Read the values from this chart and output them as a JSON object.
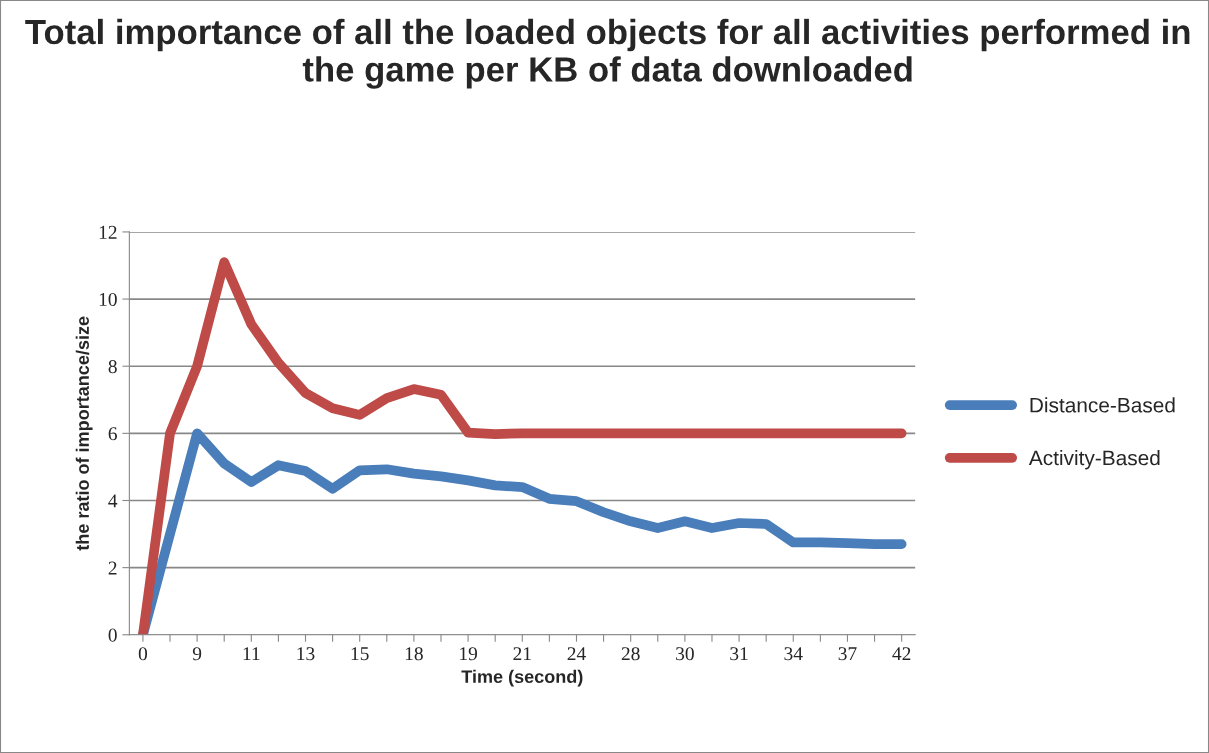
{
  "chart_data": {
    "type": "line",
    "title": "Total importance of all the loaded objects for all activities performed in the game per KB of data downloaded",
    "xlabel": "Time (second)",
    "ylabel": "the ratio of importance/size",
    "categories": [
      "0",
      null,
      "9",
      null,
      "11",
      null,
      "13",
      null,
      "15",
      null,
      "18",
      null,
      "19",
      null,
      "21",
      null,
      "24",
      null,
      "28",
      null,
      "30",
      null,
      "31",
      null,
      "34",
      null,
      "37",
      null,
      "42"
    ],
    "series": [
      {
        "name": "Distance-Based",
        "color": "#4a7ebb",
        "values": [
          0,
          3.0,
          6.0,
          5.1,
          4.55,
          5.05,
          4.88,
          4.35,
          4.9,
          4.93,
          4.8,
          4.72,
          4.6,
          4.45,
          4.4,
          4.05,
          3.98,
          3.65,
          3.38,
          3.18,
          3.38,
          3.18,
          3.33,
          3.3,
          2.75,
          2.75,
          2.73,
          2.7,
          2.7
        ]
      },
      {
        "name": "Activity-Based",
        "color": "#be4b48",
        "values": [
          0,
          6.0,
          8.0,
          11.1,
          9.25,
          8.1,
          7.2,
          6.75,
          6.55,
          7.05,
          7.32,
          7.15,
          6.02,
          5.98,
          6.0,
          6.0,
          6.0,
          6.0,
          6.0,
          6.0,
          6.0,
          6.0,
          6.0,
          6.0,
          6.0,
          6.0,
          6.0,
          6.0,
          6.0
        ]
      }
    ],
    "ylim": [
      0,
      12
    ],
    "yticks": [
      0,
      2,
      4,
      6,
      8,
      10,
      12
    ],
    "grid": "y",
    "legend": "right",
    "marker": "none",
    "line_style": "solid"
  }
}
